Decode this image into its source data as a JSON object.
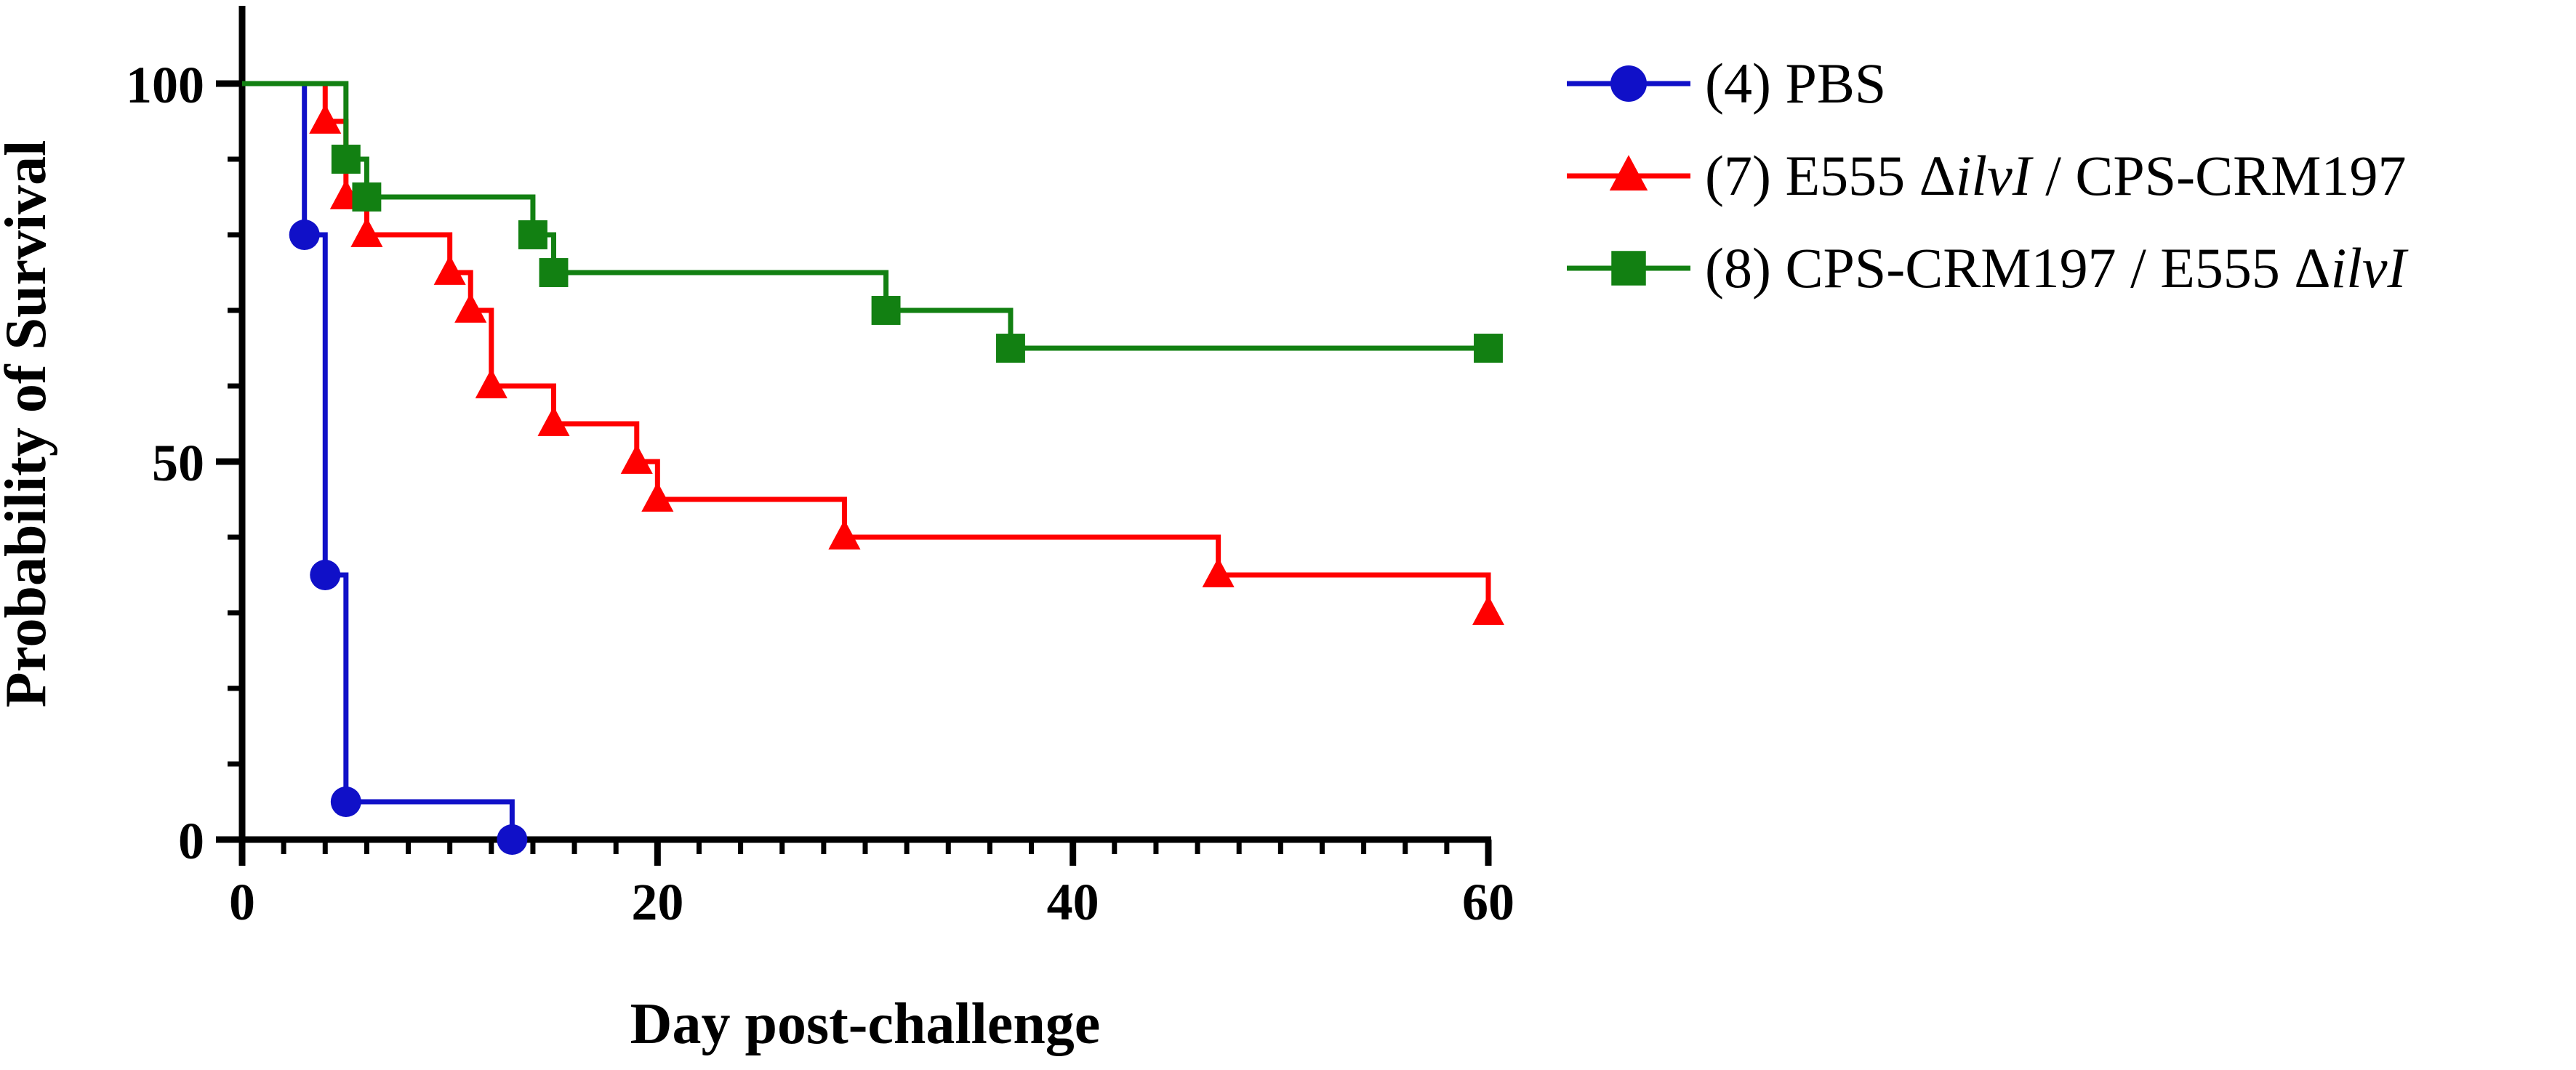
{
  "chart_data": {
    "type": "line",
    "subtype": "kaplan-meier step survival curve",
    "xlabel": "Day post-challenge",
    "ylabel": "Probability of Survival",
    "xlim": [
      0,
      60
    ],
    "ylim": [
      0,
      100
    ],
    "xticks": [
      0,
      20,
      40,
      60
    ],
    "xtick_labels": [
      "0",
      "20",
      "40",
      "60"
    ],
    "yticks": [
      0,
      50,
      100
    ],
    "ytick_labels": [
      "0",
      "50",
      "100"
    ],
    "grid": false,
    "legend_position": "right",
    "series": [
      {
        "name": "(4) PBS",
        "legend_parts": [
          {
            "text": "(4) PBS",
            "italic": false
          }
        ],
        "color": "#1010c8",
        "marker": "circle",
        "x": [
          0,
          3,
          4,
          5,
          13
        ],
        "y": [
          100,
          80,
          35,
          5,
          0
        ]
      },
      {
        "name": "(7) E555 ΔilvI /  CPS-CRM197",
        "legend_parts": [
          {
            "text": "(7) E555 Δ",
            "italic": false
          },
          {
            "text": "ilvI",
            "italic": true
          },
          {
            "text": " /  CPS-CRM197",
            "italic": false
          }
        ],
        "color": "#ff0000",
        "marker": "triangle",
        "x": [
          0,
          4,
          5,
          6,
          10,
          11,
          12,
          15,
          19,
          20,
          29,
          47,
          60
        ],
        "y": [
          100,
          95,
          85,
          80,
          75,
          70,
          60,
          55,
          50,
          45,
          40,
          35,
          30
        ]
      },
      {
        "name": "(8) CPS-CRM197 / E555 ΔilvI",
        "legend_parts": [
          {
            "text": "(8) CPS-CRM197 / E555 Δ",
            "italic": false
          },
          {
            "text": "ilvI",
            "italic": true
          }
        ],
        "color": "#128012",
        "marker": "square",
        "x": [
          0,
          5,
          6,
          14,
          15,
          31,
          37,
          60
        ],
        "y": [
          100,
          90,
          85,
          80,
          75,
          70,
          65,
          65
        ]
      }
    ]
  }
}
